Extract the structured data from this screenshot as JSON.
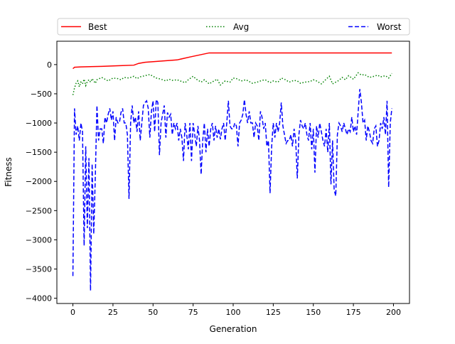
{
  "chart_data": {
    "type": "line",
    "xlabel": "Generation",
    "ylabel": "Fitness",
    "xlim": [
      -10,
      210
    ],
    "ylim": [
      -4090,
      400
    ],
    "xticks": [
      0,
      25,
      50,
      75,
      100,
      125,
      150,
      175,
      200
    ],
    "yticks": [
      0,
      -500,
      -1000,
      -1500,
      -2000,
      -2500,
      -3000,
      -3500,
      -4000
    ],
    "grid": false,
    "legend": {
      "placement": "top",
      "columns": 3
    },
    "series": [
      {
        "name": "Best",
        "color": "#ff0000",
        "style": "solid",
        "points": [
          [
            0,
            -70
          ],
          [
            1,
            -45
          ],
          [
            5,
            -40
          ],
          [
            18,
            -30
          ],
          [
            28,
            -20
          ],
          [
            38,
            -10
          ],
          [
            41,
            20
          ],
          [
            45,
            40
          ],
          [
            65,
            80
          ],
          [
            73,
            130
          ],
          [
            85,
            200
          ],
          [
            199,
            200
          ]
        ]
      },
      {
        "name": "Avg",
        "color": "#008000",
        "style": "dotted",
        "points": [
          [
            0,
            -520
          ],
          [
            1,
            -400
          ],
          [
            2,
            -320
          ],
          [
            3,
            -280
          ],
          [
            4,
            -380
          ],
          [
            5,
            -300
          ],
          [
            6,
            -330
          ],
          [
            7,
            -250
          ],
          [
            8,
            -360
          ],
          [
            9,
            -290
          ],
          [
            10,
            -260
          ],
          [
            11,
            -300
          ],
          [
            12,
            -240
          ],
          [
            13,
            -280
          ],
          [
            14,
            -320
          ],
          [
            15,
            -260
          ],
          [
            18,
            -220
          ],
          [
            20,
            -250
          ],
          [
            22,
            -280
          ],
          [
            25,
            -230
          ],
          [
            28,
            -240
          ],
          [
            30,
            -260
          ],
          [
            32,
            -220
          ],
          [
            35,
            -230
          ],
          [
            38,
            -200
          ],
          [
            40,
            -240
          ],
          [
            42,
            -210
          ],
          [
            45,
            -190
          ],
          [
            48,
            -170
          ],
          [
            50,
            -200
          ],
          [
            52,
            -230
          ],
          [
            55,
            -250
          ],
          [
            58,
            -280
          ],
          [
            60,
            -250
          ],
          [
            62,
            -270
          ],
          [
            65,
            -260
          ],
          [
            68,
            -290
          ],
          [
            70,
            -310
          ],
          [
            72,
            -260
          ],
          [
            75,
            -200
          ],
          [
            77,
            -250
          ],
          [
            80,
            -300
          ],
          [
            82,
            -260
          ],
          [
            85,
            -330
          ],
          [
            88,
            -280
          ],
          [
            90,
            -250
          ],
          [
            92,
            -350
          ],
          [
            95,
            -280
          ],
          [
            98,
            -300
          ],
          [
            100,
            -230
          ],
          [
            102,
            -240
          ],
          [
            105,
            -280
          ],
          [
            108,
            -260
          ],
          [
            110,
            -290
          ],
          [
            112,
            -320
          ],
          [
            115,
            -300
          ],
          [
            118,
            -270
          ],
          [
            120,
            -260
          ],
          [
            123,
            -310
          ],
          [
            125,
            -280
          ],
          [
            128,
            -300
          ],
          [
            130,
            -230
          ],
          [
            132,
            -250
          ],
          [
            135,
            -300
          ],
          [
            138,
            -270
          ],
          [
            140,
            -280
          ],
          [
            142,
            -320
          ],
          [
            145,
            -300
          ],
          [
            148,
            -290
          ],
          [
            150,
            -260
          ],
          [
            152,
            -280
          ],
          [
            155,
            -330
          ],
          [
            158,
            -250
          ],
          [
            160,
            -200
          ],
          [
            162,
            -330
          ],
          [
            164,
            -300
          ],
          [
            166,
            -270
          ],
          [
            168,
            -220
          ],
          [
            170,
            -260
          ],
          [
            172,
            -190
          ],
          [
            175,
            -250
          ],
          [
            178,
            -140
          ],
          [
            180,
            -180
          ],
          [
            182,
            -170
          ],
          [
            185,
            -220
          ],
          [
            188,
            -200
          ],
          [
            190,
            -180
          ],
          [
            192,
            -210
          ],
          [
            195,
            -190
          ],
          [
            197,
            -230
          ],
          [
            199,
            -150
          ]
        ]
      },
      {
        "name": "Worst",
        "color": "#0000ff",
        "style": "dashed",
        "points": [
          [
            0,
            -3620
          ],
          [
            1,
            -750
          ],
          [
            2,
            -1200
          ],
          [
            3,
            -1050
          ],
          [
            4,
            -1300
          ],
          [
            5,
            -1000
          ],
          [
            6,
            -1150
          ],
          [
            7,
            -3100
          ],
          [
            8,
            -1400
          ],
          [
            9,
            -2800
          ],
          [
            10,
            -1600
          ],
          [
            11,
            -3870
          ],
          [
            12,
            -1700
          ],
          [
            13,
            -2900
          ],
          [
            14,
            -1900
          ],
          [
            15,
            -700
          ],
          [
            16,
            -1300
          ],
          [
            17,
            -1100
          ],
          [
            18,
            -1100
          ],
          [
            19,
            -1350
          ],
          [
            20,
            -900
          ],
          [
            21,
            -1000
          ],
          [
            22,
            -850
          ],
          [
            23,
            -750
          ],
          [
            24,
            -950
          ],
          [
            25,
            -800
          ],
          [
            26,
            -1300
          ],
          [
            27,
            -900
          ],
          [
            28,
            -1000
          ],
          [
            29,
            -1000
          ],
          [
            30,
            -820
          ],
          [
            31,
            -750
          ],
          [
            32,
            -1000
          ],
          [
            33,
            -1000
          ],
          [
            34,
            -1200
          ],
          [
            35,
            -2300
          ],
          [
            36,
            -1000
          ],
          [
            37,
            -700
          ],
          [
            38,
            -1000
          ],
          [
            39,
            -900
          ],
          [
            40,
            -1150
          ],
          [
            41,
            -800
          ],
          [
            42,
            -1300
          ],
          [
            43,
            -1000
          ],
          [
            44,
            -700
          ],
          [
            45,
            -650
          ],
          [
            46,
            -620
          ],
          [
            47,
            -750
          ],
          [
            48,
            -1250
          ],
          [
            49,
            -800
          ],
          [
            50,
            -620
          ],
          [
            51,
            -1150
          ],
          [
            52,
            -600
          ],
          [
            53,
            -650
          ],
          [
            54,
            -1550
          ],
          [
            55,
            -1000
          ],
          [
            56,
            -850
          ],
          [
            57,
            -700
          ],
          [
            58,
            -1250
          ],
          [
            59,
            -820
          ],
          [
            60,
            -900
          ],
          [
            61,
            -850
          ],
          [
            62,
            -1200
          ],
          [
            63,
            -1000
          ],
          [
            64,
            -1100
          ],
          [
            65,
            -1000
          ],
          [
            66,
            -1300
          ],
          [
            67,
            -1100
          ],
          [
            68,
            -1250
          ],
          [
            69,
            -1650
          ],
          [
            70,
            -1000
          ],
          [
            71,
            -1200
          ],
          [
            72,
            -1450
          ],
          [
            73,
            -1000
          ],
          [
            74,
            -1650
          ],
          [
            75,
            -1000
          ],
          [
            76,
            -1200
          ],
          [
            77,
            -1400
          ],
          [
            78,
            -1050
          ],
          [
            79,
            -1300
          ],
          [
            80,
            -1880
          ],
          [
            81,
            -1300
          ],
          [
            82,
            -1000
          ],
          [
            83,
            -1500
          ],
          [
            84,
            -1100
          ],
          [
            85,
            -1400
          ],
          [
            86,
            -1100
          ],
          [
            87,
            -1000
          ],
          [
            88,
            -1300
          ],
          [
            89,
            -1050
          ],
          [
            90,
            -1250
          ],
          [
            91,
            -1100
          ],
          [
            92,
            -1280
          ],
          [
            93,
            -1100
          ],
          [
            94,
            -1000
          ],
          [
            95,
            -1300
          ],
          [
            96,
            -1000
          ],
          [
            97,
            -620
          ],
          [
            98,
            -1050
          ],
          [
            99,
            -1100
          ],
          [
            100,
            -1100
          ],
          [
            101,
            -1000
          ],
          [
            102,
            -1050
          ],
          [
            103,
            -1400
          ],
          [
            104,
            -1000
          ],
          [
            105,
            -950
          ],
          [
            106,
            -850
          ],
          [
            107,
            -600
          ],
          [
            108,
            -850
          ],
          [
            109,
            -1000
          ],
          [
            110,
            -800
          ],
          [
            111,
            -1000
          ],
          [
            112,
            -1000
          ],
          [
            113,
            -1250
          ],
          [
            114,
            -1000
          ],
          [
            115,
            -1050
          ],
          [
            116,
            -1300
          ],
          [
            117,
            -800
          ],
          [
            118,
            -900
          ],
          [
            119,
            -1100
          ],
          [
            120,
            -1000
          ],
          [
            121,
            -1400
          ],
          [
            122,
            -1300
          ],
          [
            123,
            -2200
          ],
          [
            124,
            -1400
          ],
          [
            125,
            -1000
          ],
          [
            126,
            -1250
          ],
          [
            127,
            -1000
          ],
          [
            128,
            -1150
          ],
          [
            129,
            -1000
          ],
          [
            130,
            -650
          ],
          [
            131,
            -1050
          ],
          [
            132,
            -1200
          ],
          [
            133,
            -1350
          ],
          [
            134,
            -1300
          ],
          [
            135,
            -1300
          ],
          [
            136,
            -1200
          ],
          [
            137,
            -1400
          ],
          [
            138,
            -1100
          ],
          [
            139,
            -1300
          ],
          [
            140,
            -1950
          ],
          [
            141,
            -1200
          ],
          [
            142,
            -950
          ],
          [
            143,
            -1050
          ],
          [
            144,
            -1100
          ],
          [
            145,
            -1000
          ],
          [
            146,
            -1200
          ],
          [
            147,
            -1300
          ],
          [
            148,
            -1000
          ],
          [
            149,
            -1450
          ],
          [
            150,
            -1100
          ],
          [
            151,
            -1850
          ],
          [
            152,
            -1050
          ],
          [
            153,
            -1250
          ],
          [
            154,
            -1000
          ],
          [
            155,
            -1150
          ],
          [
            156,
            -1300
          ],
          [
            157,
            -1400
          ],
          [
            158,
            -1100
          ],
          [
            159,
            -1500
          ],
          [
            160,
            -1000
          ],
          [
            161,
            -2050
          ],
          [
            162,
            -1300
          ],
          [
            163,
            -2150
          ],
          [
            164,
            -2250
          ],
          [
            165,
            -1200
          ],
          [
            166,
            -1000
          ],
          [
            167,
            -1050
          ],
          [
            168,
            -1150
          ],
          [
            169,
            -1000
          ],
          [
            170,
            -1100
          ],
          [
            171,
            -1200
          ],
          [
            172,
            -1100
          ],
          [
            173,
            -1150
          ],
          [
            174,
            -900
          ],
          [
            175,
            -1150
          ],
          [
            176,
            -1050
          ],
          [
            177,
            -1200
          ],
          [
            178,
            -800
          ],
          [
            179,
            -420
          ],
          [
            180,
            -650
          ],
          [
            181,
            -1000
          ],
          [
            182,
            -950
          ],
          [
            183,
            -1300
          ],
          [
            184,
            -1050
          ],
          [
            185,
            -1150
          ],
          [
            186,
            -1300
          ],
          [
            187,
            -1350
          ],
          [
            188,
            -1100
          ],
          [
            189,
            -1050
          ],
          [
            190,
            -1400
          ],
          [
            191,
            -1300
          ],
          [
            192,
            -1000
          ],
          [
            193,
            -1100
          ],
          [
            194,
            -900
          ],
          [
            195,
            -1200
          ],
          [
            196,
            -620
          ],
          [
            197,
            -2100
          ],
          [
            198,
            -1000
          ],
          [
            199,
            -750
          ]
        ]
      }
    ]
  }
}
